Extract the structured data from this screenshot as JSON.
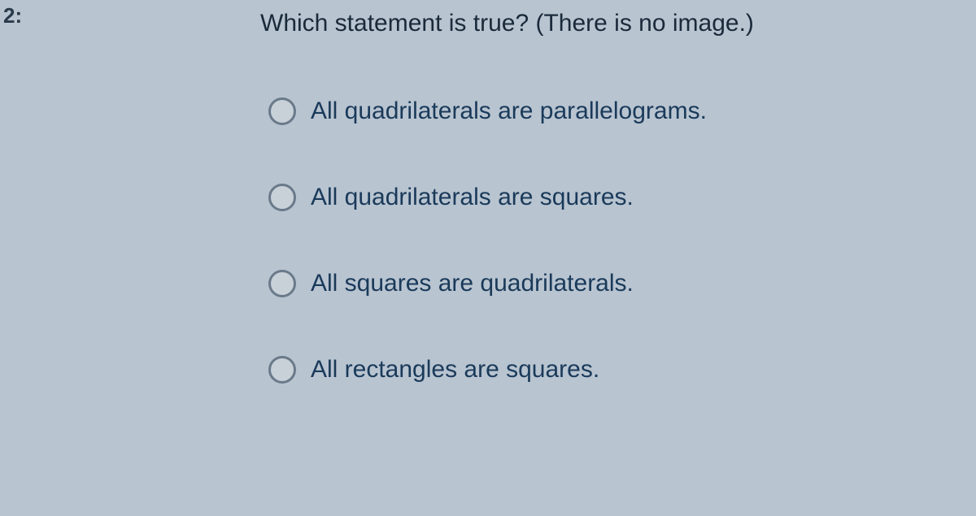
{
  "question": {
    "number": "2:",
    "text": "Which statement is true?  (There is no image.)"
  },
  "options": [
    {
      "label": "All quadrilaterals are parallelograms."
    },
    {
      "label": "All quadrilaterals are squares."
    },
    {
      "label": "All squares are quadrilaterals."
    },
    {
      "label": "All rectangles are squares."
    }
  ],
  "colors": {
    "background": "#b8c4d0",
    "text": "#1a2a3a",
    "option_text": "#1a3a5a",
    "radio_border": "#6a7a8a"
  },
  "typography": {
    "question_fontsize": 30,
    "option_fontsize": 30,
    "font_family": "Segoe UI"
  }
}
